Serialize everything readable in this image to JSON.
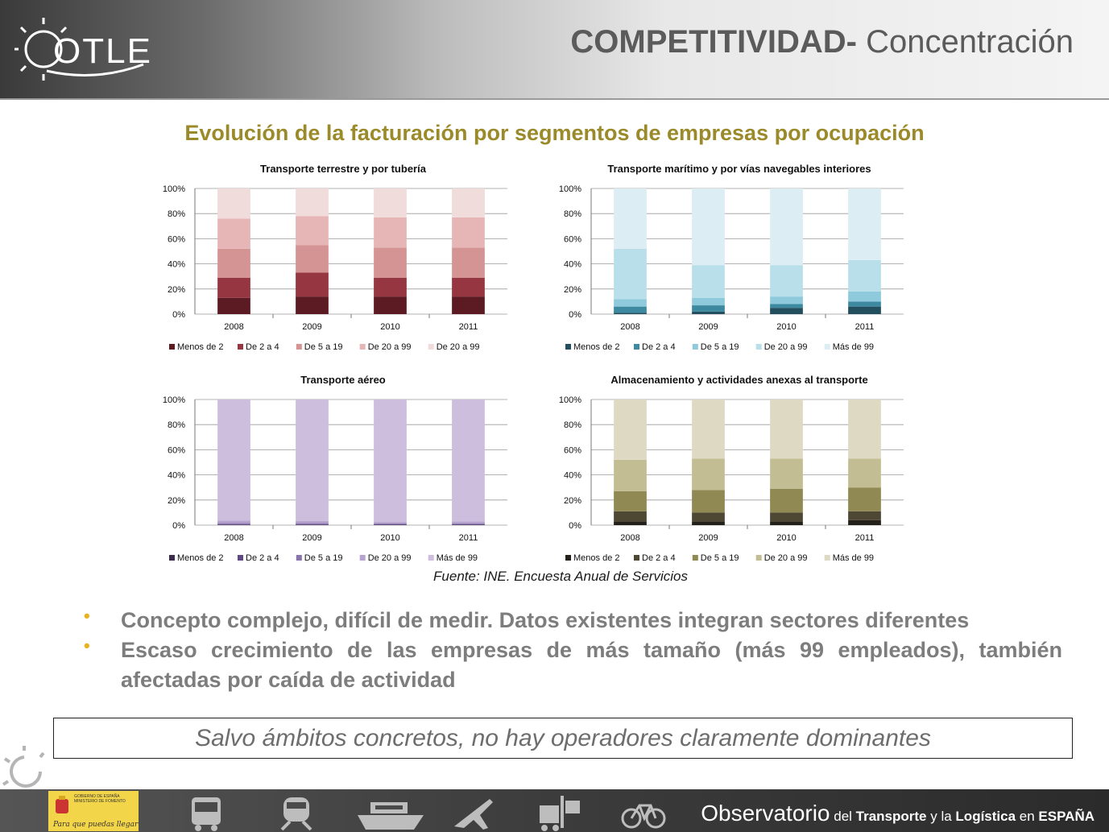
{
  "header": {
    "logo_text": "OTLE",
    "title_bold": "COMPETITIVIDAD-",
    "title_rest": " Concentración"
  },
  "subtitle": "Evolución de la facturación por segmentos de empresas por ocupación",
  "chart_data": [
    {
      "type": "bar",
      "stacked": true,
      "title": "Transporte terrestre y por tubería",
      "categories": [
        "2008",
        "2009",
        "2010",
        "2011"
      ],
      "ylim": [
        0,
        100
      ],
      "yticks": [
        "0%",
        "20%",
        "40%",
        "60%",
        "80%",
        "100%"
      ],
      "legend_position": "bottom",
      "series": [
        {
          "name": "Menos de 2",
          "color": "#5c1a22",
          "values": [
            13,
            14,
            14,
            14
          ]
        },
        {
          "name": "De 2 a 4",
          "color": "#953640",
          "values": [
            16,
            19,
            15,
            15
          ]
        },
        {
          "name": "De 5 a 19",
          "color": "#d49494",
          "values": [
            23,
            22,
            24,
            24
          ]
        },
        {
          "name": "De 20 a 99",
          "color": "#e6b6b6",
          "values": [
            24,
            23,
            24,
            24
          ]
        },
        {
          "name": "De 20 a 99",
          "color": "#f1dcdc",
          "values": [
            24,
            22,
            23,
            23
          ]
        }
      ]
    },
    {
      "type": "bar",
      "stacked": true,
      "title": "Transporte marítimo y por vías navegables interiores",
      "categories": [
        "2008",
        "2009",
        "2010",
        "2011"
      ],
      "ylim": [
        0,
        100
      ],
      "yticks": [
        "0%",
        "20%",
        "40%",
        "60%",
        "80%",
        "100%"
      ],
      "legend_position": "bottom",
      "series": [
        {
          "name": "Menos de 2",
          "color": "#234e5e",
          "values": [
            1,
            2,
            5,
            6
          ]
        },
        {
          "name": "De 2 a 4",
          "color": "#3d8aa0",
          "values": [
            5,
            5,
            3,
            4
          ]
        },
        {
          "name": "De 5 a 19",
          "color": "#8ec9dc",
          "values": [
            6,
            6,
            6,
            8
          ]
        },
        {
          "name": "De 20 a 99",
          "color": "#b9e0ea",
          "values": [
            40,
            26,
            25,
            25
          ]
        },
        {
          "name": "Más de 99",
          "color": "#dcedf3",
          "values": [
            48,
            61,
            61,
            57
          ]
        }
      ]
    },
    {
      "type": "bar",
      "stacked": true,
      "title": "Transporte aéreo",
      "categories": [
        "2008",
        "2009",
        "2010",
        "2011"
      ],
      "ylim": [
        0,
        100
      ],
      "yticks": [
        "0%",
        "20%",
        "40%",
        "60%",
        "80%",
        "100%"
      ],
      "legend_position": "bottom",
      "series": [
        {
          "name": "Menos de 2",
          "color": "#3b2c4d",
          "values": [
            0.2,
            0.2,
            0.2,
            0.2
          ]
        },
        {
          "name": "De 2 a 4",
          "color": "#5e4a82",
          "values": [
            0.5,
            0.5,
            0.5,
            0.5
          ]
        },
        {
          "name": "De 5 a 19",
          "color": "#8a74ac",
          "values": [
            1,
            1,
            0.8,
            0.8
          ]
        },
        {
          "name": "De 20 a 99",
          "color": "#b6a3cf",
          "values": [
            2,
            1.5,
            1,
            1.5
          ]
        },
        {
          "name": "Más de 99",
          "color": "#ccbedc",
          "values": [
            96.3,
            96.8,
            97.5,
            97
          ]
        }
      ]
    },
    {
      "type": "bar",
      "stacked": true,
      "title": "Almacenamiento y actividades anexas al transporte",
      "categories": [
        "2008",
        "2009",
        "2010",
        "2011"
      ],
      "ylim": [
        0,
        100
      ],
      "yticks": [
        "0%",
        "20%",
        "40%",
        "60%",
        "80%",
        "100%"
      ],
      "legend_position": "bottom",
      "series": [
        {
          "name": "Menos de 2",
          "color": "#24201a",
          "values": [
            3,
            3,
            3,
            4
          ]
        },
        {
          "name": "De 2 a 4",
          "color": "#4e4734",
          "values": [
            8,
            7,
            7,
            7
          ]
        },
        {
          "name": "De 5 a 19",
          "color": "#908953",
          "values": [
            16,
            18,
            19,
            19
          ]
        },
        {
          "name": "De 20 a 99",
          "color": "#c3bd93",
          "values": [
            25,
            25,
            24,
            23
          ]
        },
        {
          "name": "Más de 99",
          "color": "#ddd9c2",
          "values": [
            48,
            47,
            47,
            47
          ]
        }
      ]
    }
  ],
  "source": "Fuente: INE. Encuesta Anual de Servicios",
  "bullets": [
    "Concepto complejo, difícil de medir. Datos existentes integran sectores diferentes",
    "Escaso crecimiento de las empresas de más tamaño (más 99 empleados), también afectadas por caída de actividad"
  ],
  "bullet_color": "#e8b21e",
  "conclusion": "Salvo ámbitos concretos, no hay operadores claramente dominantes",
  "footer": {
    "gov_text": "GOBIERNO DE ESPAÑA   MINISTERIO DE FOMENTO",
    "gov_slogan": "Para que puedas llegar",
    "icons": [
      "bus-icon",
      "train-icon",
      "ship-icon",
      "plane-icon",
      "forklift-icon",
      "bicycle-icon"
    ],
    "obs_word": "Observatorio",
    "obs_del": " del ",
    "obs_transporte": "Transporte",
    "obs_y": " y la ",
    "obs_logistica": "Logística",
    "obs_en": " en ",
    "obs_espana": "ESPAÑA"
  }
}
